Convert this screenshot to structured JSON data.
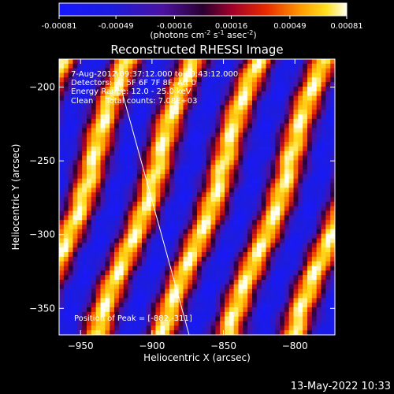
{
  "chart_data": {
    "type": "heatmap",
    "title": "Reconstructed RHESSI Image",
    "xlabel": "Heliocentric X (arcsec)",
    "ylabel": "Heliocentric Y (arcsec)",
    "xlim": [
      -965,
      -772
    ],
    "ylim": [
      -368,
      -181
    ],
    "xticks": [
      -950,
      -900,
      -850,
      -800
    ],
    "yticks": [
      -200,
      -250,
      -300,
      -350
    ],
    "colorbar": {
      "vmin": -0.00081,
      "vmax": 0.00081,
      "tick_labels": [
        "-0.00081",
        "-0.00049",
        "-0.00016",
        "0.00016",
        "0.00049",
        "0.00081"
      ],
      "label_main": "(photons cm",
      "label_sup1": "-2",
      "label_mid": " s",
      "label_sup2": "-1",
      "label_mid2": " asec",
      "label_sup3": "-2",
      "label_end": ")"
    },
    "annotations": [
      "7-Aug-2012 09:37:12.000 to 09:43:12.000",
      "Detectors: 3F 5F 6F 7F 8F, Att 0",
      "Energy Range: 12.0 - 25.0 keV",
      "Clean     Total counts: 7.08E+03"
    ],
    "peak_label": "Position of Peak = [-882,-311]",
    "limb_line": [
      [
        -925,
        -189
      ],
      [
        -874,
        -368
      ]
    ],
    "timestamp": "13-May-2022 10:33"
  }
}
